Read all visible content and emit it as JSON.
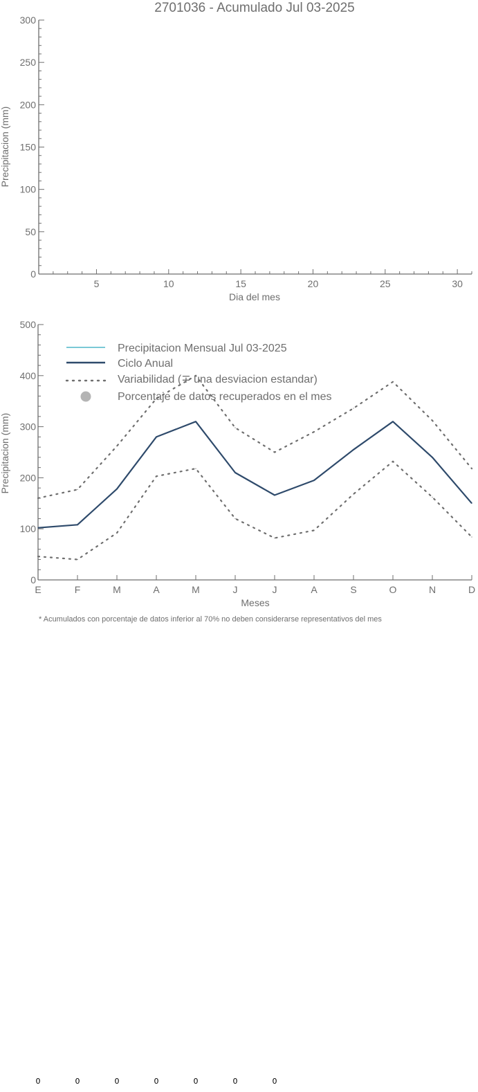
{
  "chart_data": [
    {
      "type": "line",
      "title": "2701036 - Acumulado Jul 03-2025",
      "xlabel": "Dia del mes",
      "ylabel": "Precipitacion (mm)",
      "xlim": [
        1,
        31
      ],
      "ylim": [
        0,
        300
      ],
      "x_ticks": [
        5,
        10,
        15,
        20,
        25,
        30
      ],
      "y_ticks": [
        0,
        50,
        100,
        150,
        200,
        250,
        300
      ],
      "series": []
    },
    {
      "type": "line",
      "xlabel": "Meses",
      "ylabel": "Precipitacion (mm)",
      "ylim": [
        0,
        500
      ],
      "y_ticks": [
        0,
        100,
        200,
        300,
        400,
        500
      ],
      "categories": [
        "E",
        "F",
        "M",
        "A",
        "M",
        "J",
        "J",
        "A",
        "S",
        "O",
        "N",
        "D"
      ],
      "legend": {
        "position": "top-left",
        "entries": [
          {
            "label": "Precipitacion Mensual Jul 03-2025",
            "color": "#4fb6c8",
            "style": "solid"
          },
          {
            "label": "Ciclo Anual",
            "color": "#2e4a6b",
            "style": "solid"
          },
          {
            "label": "Variabilidad (∓ una desviacion estandar)",
            "color": "#6e6e6e",
            "style": "dotted"
          },
          {
            "label": "Porcentaje de datos recuperados en el mes",
            "color": "#b4b4b4",
            "style": "marker"
          }
        ]
      },
      "series": [
        {
          "name": "Ciclo Anual",
          "color": "#2e4a6b",
          "style": "solid",
          "values": [
            102,
            108,
            178,
            280,
            310,
            210,
            166,
            195,
            255,
            310,
            240,
            150
          ]
        },
        {
          "name": "Variabilidad (∓ una desviacion estandar)",
          "role": "upper",
          "color": "#6e6e6e",
          "style": "dotted",
          "values": [
            160,
            177,
            262,
            355,
            400,
            298,
            250,
            290,
            336,
            388,
            312,
            218
          ]
        },
        {
          "name": "Variabilidad (∓ una desviacion estandar)",
          "role": "lower",
          "color": "#6e6e6e",
          "style": "dotted",
          "values": [
            46,
            40,
            92,
            203,
            218,
            120,
            82,
            97,
            168,
            232,
            162,
            84
          ]
        }
      ],
      "footnote": "* Acumulados con porcentaje de datos inferior al 70% no deben considerarse representativos del mes",
      "percent_recovered": [
        "0",
        "0",
        "0",
        "0",
        "0",
        "0",
        "0"
      ]
    }
  ]
}
